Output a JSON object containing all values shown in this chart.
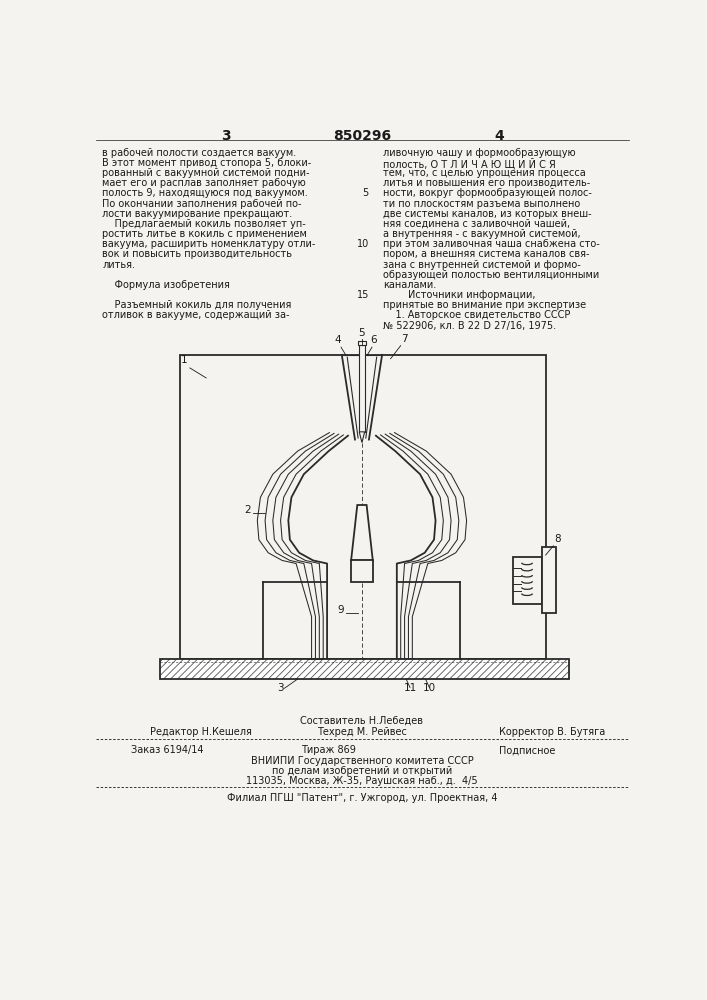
{
  "bg_color": "#f5f3f0",
  "text_color": "#1a1a1a",
  "page_num_left": "3",
  "page_num_center": "850296",
  "page_num_right": "4",
  "left_col_text": [
    "в рабочей полости создается вакуум.",
    "В этот момент привод стопора 5, блоки-",
    "рованный с вакуумной системой подни-",
    "мает его и расплав заполняет рабочую",
    "полость 9, находящуюся под вакуумом.",
    "По окончании заполнения рабочей по-",
    "лости вакуумирование прекращают.",
    "    Предлагаемый кокиль позволяет уп-",
    "ростить литье в кокиль с применением",
    "вакуума, расширить номенклатуру отли-",
    "вок и повысить производительность",
    "литья.",
    "",
    "    Формула изобретения",
    "",
    "    Разъемный кокиль для получения",
    "отливок в вакууме, содержащий за-"
  ],
  "right_col_text": [
    "ливочную чашу и формообразующую",
    "полость, О Т Л И Ч А Ю Щ И Й С Я",
    "тем, что, с целью упрощения процесса",
    "литья и повышения его производитель-",
    "ности, вокруг формообразующей полос-",
    "ти по плоскостям разъема выполнено",
    "две системы каналов, из которых внеш-",
    "няя соединена с заливочной чашей,",
    "а внутренняя - с вакуумной системой,",
    "при этом заливочная чаша снабжена сто-",
    "пором, а внешняя система каналов свя-",
    "зана с внутренней системой и формо-",
    "образующей полостью вентиляционными",
    "каналами.",
    "        Источники информации,",
    "принятые во внимание при экспертизе",
    "    1. Авторское свидетельство СССР",
    "№ 522906, кл. В 22 D 27/16, 1975."
  ],
  "footer_compiler": "Составитель Н.Лебедев",
  "footer_editor": "Редактор Н.Кешеля",
  "footer_tech": "Техред М. Рейвес",
  "footer_corrector": "Корректор В. Бутяга",
  "footer_order": "Заказ 6194/14",
  "footer_print": "Тираж 869",
  "footer_subscription": "Подписное",
  "footer_org": "ВНИИПИ Государственного комитета СССР",
  "footer_dept": "по делам изобретений и открытий",
  "footer_addr": "113035, Москва, Ж-35, Раушская наб., д.  4/5",
  "footer_branch": "Филиал ПГШ \"Патент\", г. Ужгород, ул. Проектная, 4"
}
